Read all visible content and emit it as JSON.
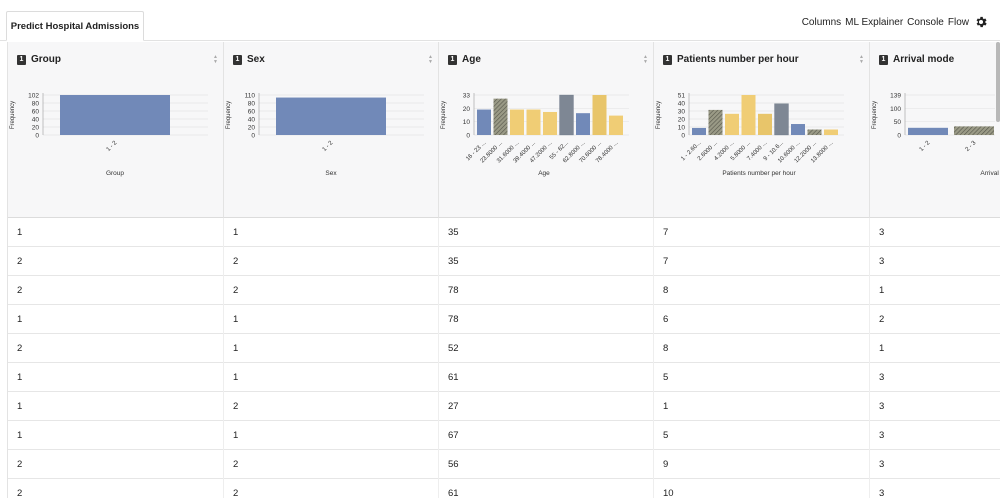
{
  "tab": {
    "label": "Predict Hospital Admissions"
  },
  "menu": {
    "columns": "Columns",
    "ml_explainer": "ML Explainer",
    "console": "Console",
    "flow": "Flow"
  },
  "columns": [
    {
      "badge": "1",
      "name": "Group"
    },
    {
      "badge": "1",
      "name": "Sex"
    },
    {
      "badge": "1",
      "name": "Age"
    },
    {
      "badge": "1",
      "name": "Patients number per hour"
    },
    {
      "badge": "1",
      "name": "Arrival mode"
    }
  ],
  "chart_data": [
    {
      "type": "bar",
      "categories": [
        "1 - 2"
      ],
      "values": [
        102
      ],
      "yticks": [
        "102",
        "80",
        "60",
        "40",
        "20",
        "0"
      ],
      "ylim": [
        0,
        102
      ],
      "ylabel": "Frequency",
      "xlabel": "Group",
      "colors": [
        "#7189b8"
      ]
    },
    {
      "type": "bar",
      "categories": [
        "1 - 2"
      ],
      "values": [
        103
      ],
      "yticks": [
        "110",
        "80",
        "60",
        "40",
        "20",
        "0"
      ],
      "ylim": [
        0,
        110
      ],
      "ylabel": "Frequency",
      "xlabel": "Sex",
      "colors": [
        "#7189b8"
      ]
    },
    {
      "type": "bar",
      "categories": [
        "16 - 23 ...",
        "23.8000 ...",
        "31.6000 ...",
        "39.4000 ...",
        "47.2000 ...",
        "55 - 62...",
        "62.8000 ...",
        "70.6000 ...",
        "78.4000 ..."
      ],
      "values": [
        21,
        30,
        21,
        21,
        19,
        33,
        18,
        33,
        16
      ],
      "yticks": [
        "33",
        "20",
        "10",
        "0"
      ],
      "ylim": [
        0,
        33
      ],
      "ylabel": "Frequency",
      "xlabel": "Age",
      "colors": [
        "#7189b8",
        "#8c8c7a",
        "#f0cd75",
        "#f0cd75",
        "#f0cd75",
        "#7e8794",
        "#7189b8",
        "#e8c56a",
        "#f0cd75"
      ]
    },
    {
      "type": "bar",
      "categories": [
        "1 - 2.60...",
        "2.6000 ...",
        "4.2000 ...",
        "5.8000 ...",
        "7.4000 ...",
        "9 - 10.6...",
        "10.6000 ...",
        "12.2000 ...",
        "13.8000 ..."
      ],
      "values": [
        9,
        32,
        27,
        51,
        27,
        40,
        14,
        7,
        7
      ],
      "yticks": [
        "51",
        "40",
        "30",
        "20",
        "10",
        "0"
      ],
      "ylim": [
        0,
        51
      ],
      "ylabel": "Frequency",
      "xlabel": "Patients number per hour",
      "colors": [
        "#7189b8",
        "#8c8c7a",
        "#f0cd75",
        "#f0cd75",
        "#e8c56a",
        "#7e8794",
        "#7189b8",
        "#8c8c7a",
        "#f0cd75"
      ]
    },
    {
      "type": "bar",
      "categories": [
        "1 - 2",
        "2 - 3"
      ],
      "values": [
        25,
        30
      ],
      "yticks": [
        "139",
        "100",
        "50",
        "0"
      ],
      "ylim": [
        0,
        139
      ],
      "ylabel": "Frequency",
      "xlabel": "Arrival mo",
      "colors": [
        "#7189b8",
        "#8c8c7a"
      ]
    }
  ],
  "rows": [
    [
      "1",
      "1",
      "35",
      "7",
      "3"
    ],
    [
      "2",
      "2",
      "35",
      "7",
      "3"
    ],
    [
      "2",
      "2",
      "78",
      "8",
      "1"
    ],
    [
      "1",
      "1",
      "78",
      "6",
      "2"
    ],
    [
      "2",
      "1",
      "52",
      "8",
      "1"
    ],
    [
      "1",
      "1",
      "61",
      "5",
      "3"
    ],
    [
      "1",
      "2",
      "27",
      "1",
      "3"
    ],
    [
      "1",
      "1",
      "67",
      "5",
      "3"
    ],
    [
      "2",
      "2",
      "56",
      "9",
      "3"
    ],
    [
      "2",
      "2",
      "61",
      "10",
      "3"
    ]
  ]
}
